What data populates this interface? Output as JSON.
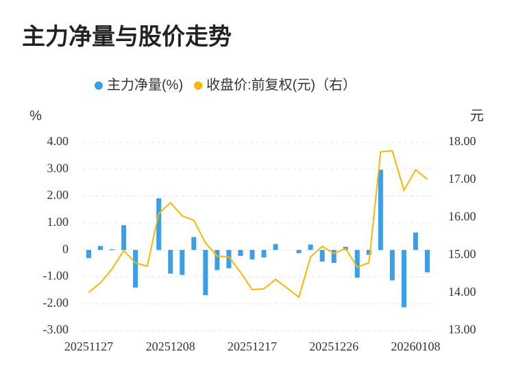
{
  "chart_data": {
    "type": "bar_line",
    "title": "主力净量与股价走势",
    "ylabel": "%",
    "y2label": "元",
    "categories": [
      "20251127",
      null,
      null,
      null,
      null,
      null,
      null,
      "20251208",
      null,
      null,
      null,
      null,
      null,
      null,
      "20251217",
      null,
      null,
      null,
      null,
      null,
      null,
      "20251226",
      null,
      null,
      null,
      null,
      null,
      null,
      "20260108",
      null
    ],
    "series": [
      {
        "name": "主力净量(%)",
        "color": "#3a9ee8",
        "kind": "bar",
        "values": [
          -0.3,
          0.15,
          0.03,
          0.92,
          -1.4,
          0,
          1.92,
          -0.88,
          -0.93,
          0.48,
          -1.68,
          -0.75,
          -0.68,
          -0.22,
          -0.35,
          -0.28,
          0.22,
          0,
          -0.12,
          0.2,
          -0.43,
          -0.48,
          0.12,
          -1.03,
          -0.18,
          2.98,
          -1.13,
          -2.13,
          0.65,
          -0.83
        ]
      },
      {
        "name": "收盘价:前复权(元)（右）",
        "color": "#f5b800",
        "kind": "line",
        "axis": "y2",
        "values": [
          14.02,
          14.27,
          14.64,
          15.13,
          14.8,
          14.71,
          16.11,
          16.4,
          16.05,
          15.93,
          15.33,
          14.98,
          14.96,
          14.55,
          14.09,
          14.11,
          14.36,
          14.13,
          13.89,
          14.96,
          15.24,
          15.05,
          15.18,
          14.69,
          14.8,
          17.75,
          17.78,
          16.73,
          17.27,
          17.02
        ]
      }
    ],
    "ylim": [
      -3,
      4
    ],
    "yticks": [
      {
        "value": -3,
        "label": "-3.00"
      },
      {
        "value": -2,
        "label": "-2.00"
      },
      {
        "value": -1,
        "label": "-1.00"
      },
      0,
      {
        "value": 1,
        "label": "1.00"
      },
      {
        "value": 2,
        "label": "2.00"
      },
      {
        "value": 3,
        "label": "3.00"
      },
      {
        "value": 4,
        "label": "4.00"
      }
    ],
    "y2lim": [
      13,
      18
    ],
    "y2ticks": [
      {
        "value": 13,
        "label": "13.00"
      },
      {
        "value": 14,
        "label": "14.00"
      },
      {
        "value": 15,
        "label": "15.00"
      },
      {
        "value": 16,
        "label": "16.00"
      },
      {
        "value": 17,
        "label": "17.00"
      },
      {
        "value": 18,
        "label": "18.00"
      }
    ],
    "grid": true,
    "legend": "top"
  }
}
